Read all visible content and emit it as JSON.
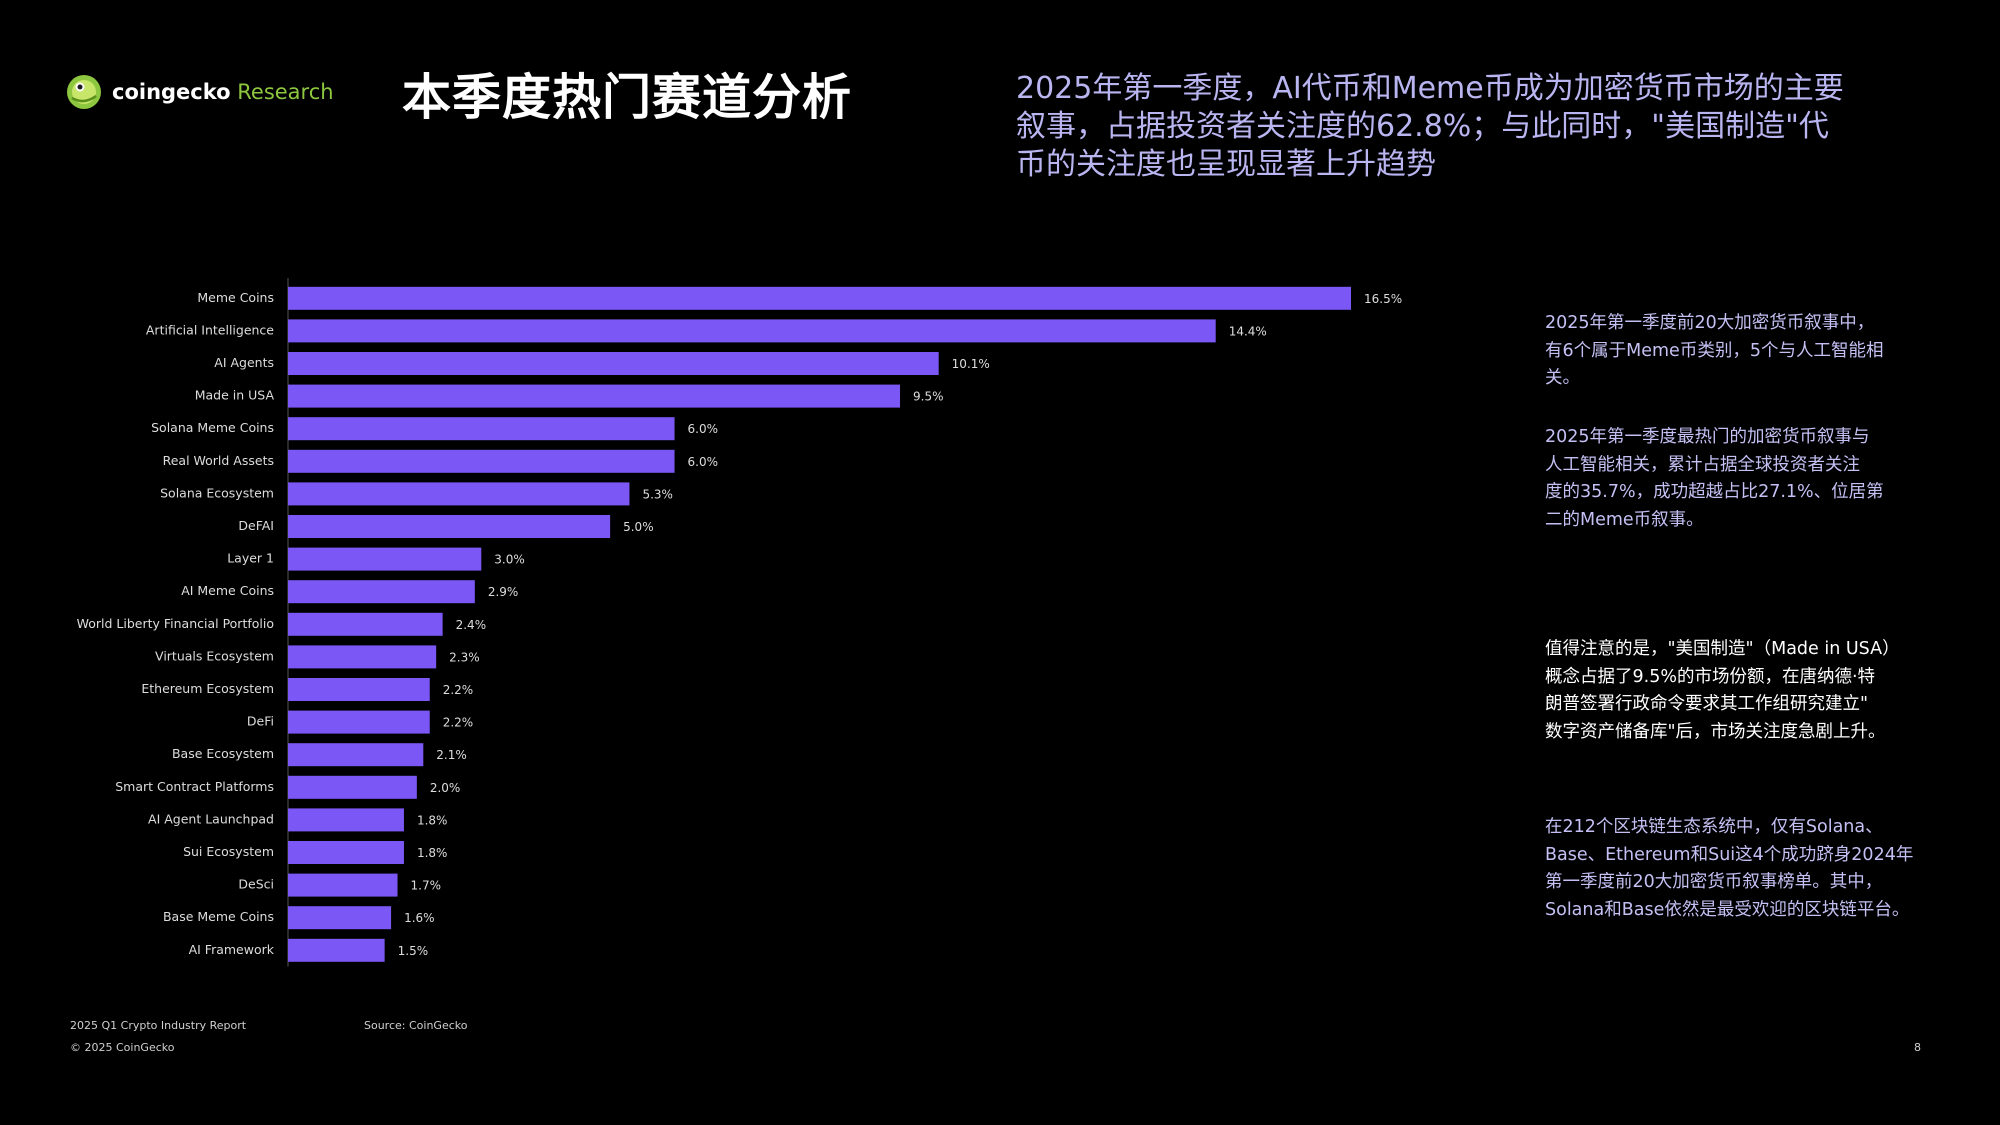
{
  "header": {
    "logo": {
      "brand": "coingecko",
      "suffix": " Research",
      "colors": {
        "mark": "#8dc63f",
        "suffix": "#8dc63f"
      }
    },
    "title": "本季度热门赛道分析",
    "headline_lines": [
      "2025年第一季度，AI代币和Meme币成为加密货币市场的主要",
      "叙事，占据投资者关注度的62.8%；与此同时，\"美国制造\"代",
      "币的关注度也呈现显著上升趋势"
    ]
  },
  "chart_data": {
    "type": "bar",
    "orientation": "horizontal",
    "categories": [
      "Meme Coins",
      "Artificial Intelligence",
      "AI Agents",
      "Made in USA",
      "Solana Meme Coins",
      "Real World Assets",
      "Solana Ecosystem",
      "DeFAI",
      "Layer 1",
      "AI Meme Coins",
      "World Liberty Financial Portfolio",
      "Virtuals Ecosystem",
      "Ethereum Ecosystem",
      "DeFi",
      "Base Ecosystem",
      "Smart Contract Platforms",
      "AI Agent Launchpad",
      "Sui Ecosystem",
      "DeSci",
      "Base Meme Coins",
      "AI Framework"
    ],
    "values": [
      16.5,
      14.4,
      10.1,
      9.5,
      6.0,
      6.0,
      5.3,
      5.0,
      3.0,
      2.9,
      2.4,
      2.3,
      2.2,
      2.2,
      2.1,
      2.0,
      1.8,
      1.8,
      1.7,
      1.6,
      1.5
    ],
    "value_labels": [
      "16.5%",
      "14.4%",
      "10.1%",
      "9.5%",
      "6.0%",
      "6.0%",
      "5.3%",
      "5.0%",
      "3.0%",
      "2.9%",
      "2.4%",
      "2.3%",
      "2.2%",
      "2.2%",
      "2.1%",
      "2.0%",
      "1.8%",
      "1.8%",
      "1.7%",
      "1.6%",
      "1.5%"
    ],
    "xlim": [
      0,
      16.5
    ],
    "grid": false,
    "legend": "none",
    "bar_color": "#7b57f5"
  },
  "notes": [
    {
      "lines": [
        "2025年第一季度前20大加密货币叙事中，",
        "有6个属于Meme币类别，5个与人工智能相",
        "关。"
      ]
    },
    {
      "lines": [
        "2025年第一季度最热门的加密货币叙事与",
        "人工智能相关，累计占据全球投资者关注",
        "度的35.7%，成功超越占比27.1%、位居第",
        "二的Meme币叙事。"
      ]
    },
    {
      "lines": [
        "值得注意的是，\"美国制造\"（Made in USA）",
        "概念占据了9.5%的市场份额，在唐纳德·特",
        "朗普签署行政命令要求其工作组研究建立\"",
        "数字资产储备库\"后，市场关注度急剧上升。"
      ]
    },
    {
      "lines": [
        "在212个区块链生态系统中，仅有Solana、",
        "Base、Ethereum和Sui这4个成功跻身2024年",
        "第一季度前20大加密货币叙事榜单。其中，",
        "Solana和Base依然是最受欢迎的区块链平台。"
      ]
    }
  ],
  "footer": {
    "report": "2025 Q1 Crypto Industry Report",
    "copyright": "© 2025 CoinGecko",
    "source": "Source: CoinGecko",
    "page_number": "8"
  },
  "colors": {
    "background": "#000000",
    "headline": "#b9b5f0",
    "note_text": "#c4c0f4",
    "bar": "#7b57f5"
  }
}
